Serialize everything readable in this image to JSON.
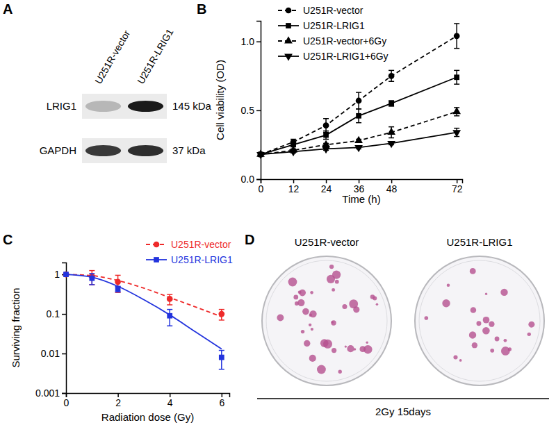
{
  "chart_data": [
    {
      "type": "blot",
      "title": "A",
      "lanes": [
        "U251R-vector",
        "U251R-LRIG1"
      ],
      "bands": [
        {
          "name": "LRIG1",
          "size": "145 kDa",
          "values": [
            0.25,
            1
          ]
        },
        {
          "name": "GAPDH",
          "size": "37 kDa",
          "values": [
            0.85,
            0.9
          ]
        }
      ]
    },
    {
      "type": "line",
      "title": "B",
      "x": [
        0,
        12,
        24,
        36,
        48,
        72
      ],
      "xlim": [
        0,
        74
      ],
      "xticks": [
        0,
        12,
        24,
        36,
        48,
        72
      ],
      "ylim": [
        0,
        1.15
      ],
      "yticks": [
        {
          "value": 0,
          "label": "0.0"
        },
        {
          "value": 0.5,
          "label": "0.5"
        },
        {
          "value": 1,
          "label": "1.0"
        }
      ],
      "x_label": "Time (h)",
      "y_label": "Cell viability (OD)",
      "legend": "upper left",
      "series": [
        {
          "name": "U251R-vector",
          "color": "#000000",
          "marker": "circle",
          "line_style": "dashed",
          "values": [
            0.18,
            0.27,
            0.39,
            0.57,
            0.75,
            1.04
          ],
          "errors": [
            0.01,
            0.02,
            0.05,
            0.06,
            0.04,
            0.09
          ]
        },
        {
          "name": "U251R-LRIG1",
          "color": "#000000",
          "marker": "square",
          "line_style": "solid",
          "values": [
            0.18,
            0.25,
            0.32,
            0.46,
            0.55,
            0.74
          ],
          "errors": [
            0.01,
            0.01,
            0.03,
            0.05,
            0.02,
            0.05
          ]
        },
        {
          "name": "U251R-vector+6Gy",
          "color": "#000000",
          "marker": "triangle",
          "line_style": "dashed",
          "values": [
            0.18,
            0.21,
            0.25,
            0.28,
            0.34,
            0.49
          ],
          "errors": [
            0.01,
            0.01,
            0.01,
            0.01,
            0.04,
            0.03
          ]
        },
        {
          "name": "U251R-LRIG1+6Gy",
          "color": "#000000",
          "marker": "triangle-down",
          "line_style": "solid",
          "values": [
            0.18,
            0.2,
            0.22,
            0.23,
            0.26,
            0.34
          ],
          "errors": [
            0.01,
            0.01,
            0.01,
            0.01,
            0.01,
            0.03
          ]
        }
      ]
    },
    {
      "type": "line",
      "title": "C",
      "log": "y",
      "x": [
        0,
        1,
        2,
        4,
        6
      ],
      "xlim": [
        0,
        6.3
      ],
      "xticks": [
        0,
        2,
        4,
        6
      ],
      "ylim": [
        0.001,
        2
      ],
      "yticks": [
        0.001,
        0.01,
        0.1,
        1
      ],
      "x_label": "Radiation dose (Gy)",
      "y_label": "Surviving fraction",
      "legend": "upper right",
      "fit_x": [
        0,
        1,
        2,
        3,
        4,
        5,
        6
      ],
      "series": [
        {
          "name": "U251R-vector",
          "color": "#ee2a2a",
          "marker": "circle",
          "line_style": "dashed",
          "values": [
            1,
            0.9,
            0.65,
            0.24,
            0.1
          ],
          "errors": [
            0,
            0.35,
            0.3,
            0.07,
            0.03
          ],
          "fit_values": [
            1,
            0.93,
            0.7,
            0.45,
            0.26,
            0.15,
            0.085
          ]
        },
        {
          "name": "U251R-LRIG1",
          "color": "#2233dd",
          "marker": "square",
          "line_style": "solid",
          "values": [
            1,
            0.8,
            0.43,
            0.09,
            0.008
          ],
          "errors": [
            0,
            0.25,
            0.07,
            0.04,
            0.004
          ],
          "fit_values": [
            1,
            0.85,
            0.5,
            0.23,
            0.095,
            0.035,
            0.013
          ]
        }
      ]
    },
    {
      "type": "image",
      "title": "D",
      "plates": [
        "U251R-vector",
        "U251R-LRIG1"
      ],
      "colony_counts": [
        40,
        22
      ],
      "color": "#b5508f",
      "caption": "2Gy 15days"
    }
  ]
}
